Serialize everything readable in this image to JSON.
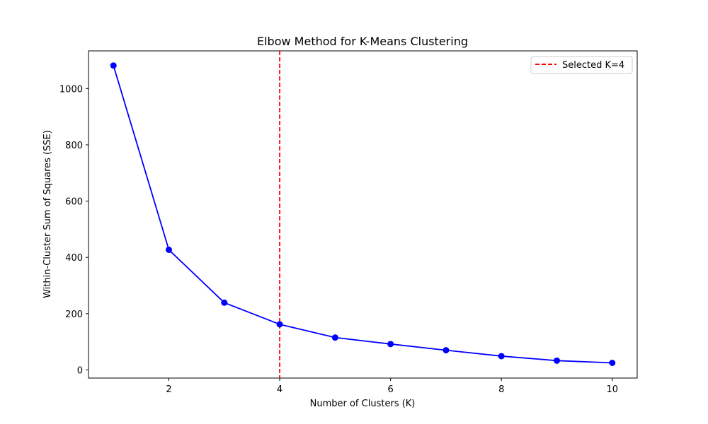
{
  "chart_data": {
    "type": "line",
    "title": "Elbow Method for K-Means Clustering",
    "xlabel": "Number of Clusters (K)",
    "ylabel": "Within-Cluster Sum of Squares (SSE)",
    "xlim": [
      0.55,
      10.45
    ],
    "ylim": [
      -29,
      1134
    ],
    "xticks": [
      2,
      4,
      6,
      8,
      10
    ],
    "yticks": [
      0,
      200,
      400,
      600,
      800,
      1000
    ],
    "grid": false,
    "series": [
      {
        "x": [
          1,
          2,
          3,
          4,
          5,
          6,
          7,
          8,
          9,
          10
        ],
        "values": [
          1082,
          427,
          239,
          162,
          115,
          92,
          70,
          49,
          33,
          25
        ],
        "color": "#0000ff",
        "marker": "circle"
      }
    ],
    "reference_lines": [
      {
        "orientation": "vertical",
        "x": 4,
        "label": "Selected K=4",
        "color": "#ff0000",
        "style": "dashed"
      }
    ],
    "legend": {
      "placement": "top-right",
      "entries": [
        "Selected K=4"
      ]
    }
  }
}
